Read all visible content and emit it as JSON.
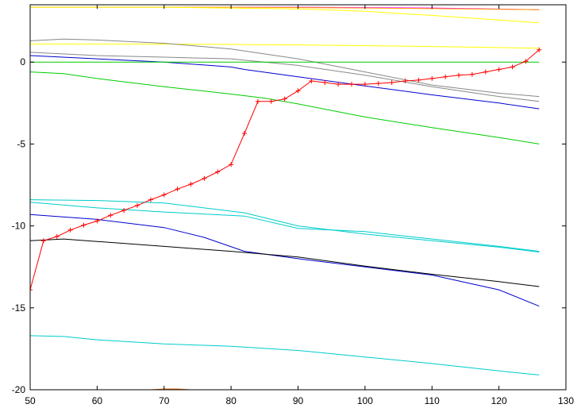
{
  "chart_data": {
    "type": "line",
    "title": "",
    "xlabel": "",
    "ylabel": "",
    "xlim": [
      50,
      130
    ],
    "ylim": [
      -20,
      3.5
    ],
    "grid": false,
    "legend": "none",
    "x_ticks": [
      "50",
      "60",
      "70",
      "80",
      "90",
      "100",
      "110",
      "120",
      "130"
    ],
    "y_ticks": [
      "0",
      "-5",
      "-10",
      "-15",
      "-20"
    ],
    "x_tick_values": [
      50,
      60,
      70,
      80,
      90,
      100,
      110,
      120,
      130
    ],
    "y_tick_values": [
      0,
      -5,
      -10,
      -15,
      -20
    ],
    "series": [
      {
        "color": "#ff00ff",
        "points": [
          [
            50,
            3.35
          ],
          [
            70,
            3.35
          ],
          [
            90,
            3.35
          ],
          [
            110,
            3.3
          ],
          [
            126,
            3.2
          ]
        ]
      },
      {
        "color": "#ffa500",
        "points": [
          [
            50,
            3.35
          ],
          [
            80,
            3.35
          ],
          [
            100,
            3.3
          ],
          [
            126,
            3.2
          ]
        ]
      },
      {
        "color": "#ffff00",
        "points": [
          [
            50,
            3.35
          ],
          [
            70,
            3.35
          ],
          [
            90,
            3.25
          ],
          [
            100,
            3.1
          ],
          [
            110,
            2.85
          ],
          [
            126,
            2.4
          ]
        ]
      },
      {
        "color": "#ffff00",
        "points": [
          [
            50,
            1.1
          ],
          [
            70,
            1.1
          ],
          [
            90,
            1.05
          ],
          [
            110,
            0.95
          ],
          [
            126,
            0.85
          ]
        ]
      },
      {
        "color": "#888888",
        "points": [
          [
            50,
            1.3
          ],
          [
            55,
            1.4
          ],
          [
            60,
            1.35
          ],
          [
            70,
            1.15
          ],
          [
            80,
            0.8
          ],
          [
            90,
            0.2
          ],
          [
            100,
            -0.6
          ],
          [
            110,
            -1.4
          ],
          [
            120,
            -1.9
          ],
          [
            126,
            -2.1
          ]
        ]
      },
      {
        "color": "#888888",
        "points": [
          [
            50,
            0.6
          ],
          [
            60,
            0.4
          ],
          [
            70,
            0.3
          ],
          [
            80,
            0.2
          ],
          [
            90,
            -0.2
          ],
          [
            100,
            -0.8
          ],
          [
            110,
            -1.5
          ],
          [
            120,
            -2.1
          ],
          [
            126,
            -2.4
          ]
        ]
      },
      {
        "color": "#0000cd",
        "points": [
          [
            50,
            0.4
          ],
          [
            60,
            0.2
          ],
          [
            70,
            0.0
          ],
          [
            80,
            -0.3
          ],
          [
            82,
            -0.45
          ],
          [
            90,
            -0.9
          ],
          [
            100,
            -1.45
          ],
          [
            110,
            -2.0
          ],
          [
            120,
            -2.5
          ],
          [
            126,
            -2.85
          ]
        ]
      },
      {
        "color": "#00cc00",
        "points": [
          [
            50,
            0.0
          ],
          [
            70,
            0.0
          ],
          [
            90,
            0.0
          ],
          [
            110,
            0.0
          ],
          [
            126,
            0.0
          ]
        ]
      },
      {
        "color": "#00cc00",
        "points": [
          [
            50,
            -0.6
          ],
          [
            55,
            -0.7
          ],
          [
            60,
            -1.0
          ],
          [
            70,
            -1.5
          ],
          [
            80,
            -1.95
          ],
          [
            85,
            -2.2
          ],
          [
            90,
            -2.55
          ],
          [
            100,
            -3.35
          ],
          [
            110,
            -4.0
          ],
          [
            120,
            -4.6
          ],
          [
            126,
            -5.0
          ]
        ]
      },
      {
        "color": "#00cccc",
        "points": [
          [
            50,
            -8.4
          ],
          [
            60,
            -8.45
          ],
          [
            70,
            -8.6
          ],
          [
            82,
            -9.2
          ],
          [
            90,
            -10.0
          ],
          [
            100,
            -10.5
          ],
          [
            110,
            -10.9
          ],
          [
            120,
            -11.3
          ],
          [
            126,
            -11.6
          ]
        ]
      },
      {
        "color": "#00cccc",
        "points": [
          [
            50,
            -8.55
          ],
          [
            60,
            -8.9
          ],
          [
            70,
            -9.15
          ],
          [
            82,
            -9.4
          ],
          [
            90,
            -10.15
          ],
          [
            100,
            -10.35
          ],
          [
            110,
            -10.8
          ],
          [
            120,
            -11.25
          ],
          [
            126,
            -11.55
          ]
        ]
      },
      {
        "color": "#0000cd",
        "points": [
          [
            50,
            -9.3
          ],
          [
            60,
            -9.6
          ],
          [
            70,
            -10.1
          ],
          [
            76,
            -10.7
          ],
          [
            82,
            -11.55
          ],
          [
            90,
            -12.0
          ],
          [
            100,
            -12.5
          ],
          [
            110,
            -13.0
          ],
          [
            120,
            -13.9
          ],
          [
            126,
            -14.9
          ]
        ]
      },
      {
        "color": "#000000",
        "points": [
          [
            50,
            -10.9
          ],
          [
            55,
            -10.8
          ],
          [
            60,
            -10.95
          ],
          [
            70,
            -11.25
          ],
          [
            80,
            -11.55
          ],
          [
            90,
            -11.9
          ],
          [
            100,
            -12.45
          ],
          [
            110,
            -12.95
          ],
          [
            120,
            -13.4
          ],
          [
            126,
            -13.7
          ]
        ]
      },
      {
        "color": "#00cccc",
        "points": [
          [
            50,
            -16.7
          ],
          [
            55,
            -16.75
          ],
          [
            60,
            -16.95
          ],
          [
            70,
            -17.2
          ],
          [
            80,
            -17.35
          ],
          [
            90,
            -17.6
          ],
          [
            100,
            -18.0
          ],
          [
            110,
            -18.4
          ],
          [
            120,
            -18.85
          ],
          [
            126,
            -19.1
          ]
        ]
      },
      {
        "color": "#ff0000",
        "markers": true,
        "points": [
          [
            50,
            -13.9
          ],
          [
            52,
            -10.9
          ],
          [
            54,
            -10.65
          ],
          [
            56,
            -10.25
          ],
          [
            58,
            -9.95
          ],
          [
            60,
            -9.7
          ],
          [
            62,
            -9.35
          ],
          [
            64,
            -9.05
          ],
          [
            66,
            -8.75
          ],
          [
            68,
            -8.4
          ],
          [
            70,
            -8.1
          ],
          [
            72,
            -7.75
          ],
          [
            74,
            -7.45
          ],
          [
            76,
            -7.1
          ],
          [
            78,
            -6.7
          ],
          [
            80,
            -6.25
          ],
          [
            82,
            -4.35
          ],
          [
            84,
            -2.4
          ],
          [
            86,
            -2.4
          ],
          [
            88,
            -2.25
          ],
          [
            90,
            -1.75
          ],
          [
            92,
            -1.15
          ],
          [
            94,
            -1.25
          ],
          [
            96,
            -1.35
          ],
          [
            98,
            -1.35
          ],
          [
            100,
            -1.35
          ],
          [
            102,
            -1.3
          ],
          [
            104,
            -1.25
          ],
          [
            106,
            -1.15
          ],
          [
            108,
            -1.1
          ],
          [
            110,
            -1.0
          ],
          [
            112,
            -0.9
          ],
          [
            114,
            -0.8
          ],
          [
            116,
            -0.75
          ],
          [
            118,
            -0.6
          ],
          [
            120,
            -0.45
          ],
          [
            122,
            -0.3
          ],
          [
            124,
            0.05
          ],
          [
            126,
            0.75
          ]
        ]
      },
      {
        "color": "#e06c1a",
        "points": [
          [
            68,
            -20.0
          ],
          [
            70,
            -19.95
          ],
          [
            72,
            -19.95
          ],
          [
            74,
            -20.0
          ]
        ]
      }
    ]
  }
}
